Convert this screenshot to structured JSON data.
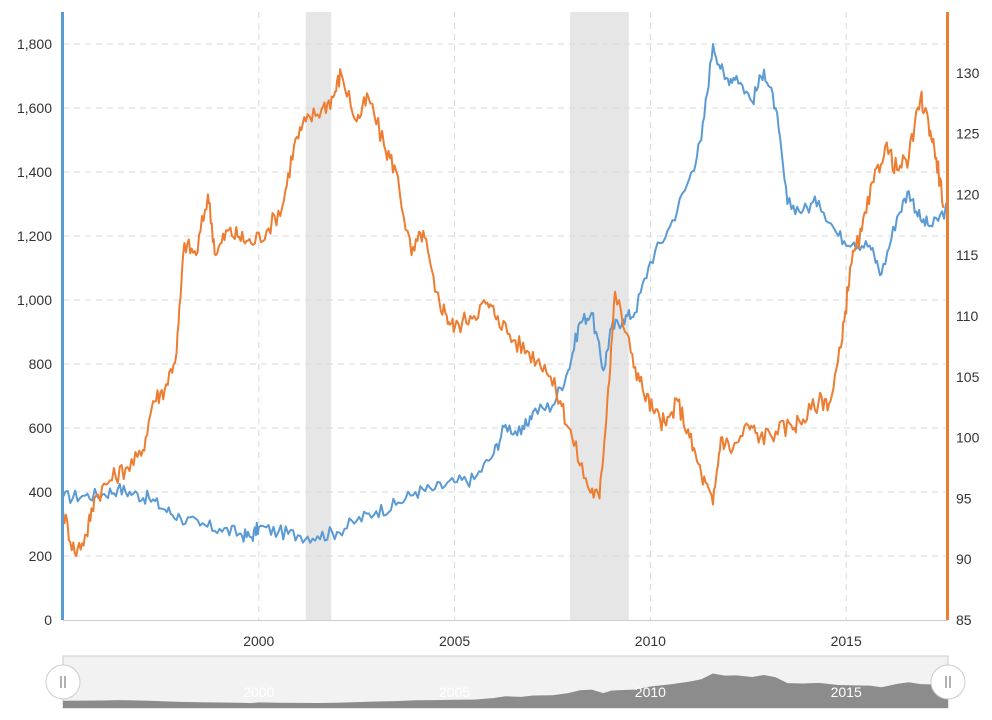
{
  "chart_data": {
    "type": "line",
    "title": "",
    "x_range": [
      1995.0,
      2017.6
    ],
    "x_ticks": [
      "2000",
      "2005",
      "2010",
      "2015"
    ],
    "y_left": {
      "range": [
        0,
        1900
      ],
      "ticks": [
        "0",
        "200",
        "400",
        "600",
        "800",
        "1,000",
        "1,200",
        "1,400",
        "1,600",
        "1,800"
      ],
      "color": "#5b9bd5"
    },
    "y_right": {
      "range": [
        85,
        135
      ],
      "ticks": [
        "85",
        "90",
        "95",
        "100",
        "105",
        "110",
        "115",
        "120",
        "125",
        "130"
      ],
      "color": "#ed7d31"
    },
    "grid": true,
    "recessions": [
      [
        2001.2,
        2001.85
      ],
      [
        2007.95,
        2009.45
      ]
    ],
    "series": [
      {
        "axis": "left",
        "color": "#5b9bd5",
        "points": [
          [
            1995.0,
            383
          ],
          [
            1995.5,
            388
          ],
          [
            1996.0,
            392
          ],
          [
            1996.4,
            410
          ],
          [
            1996.8,
            395
          ],
          [
            1997.2,
            380
          ],
          [
            1997.6,
            345
          ],
          [
            1998.0,
            320
          ],
          [
            1998.5,
            295
          ],
          [
            1999.0,
            285
          ],
          [
            1999.5,
            270
          ],
          [
            1999.8,
            258
          ],
          [
            2000.0,
            290
          ],
          [
            2000.5,
            275
          ],
          [
            2001.0,
            265
          ],
          [
            2001.5,
            262
          ],
          [
            2002.0,
            275
          ],
          [
            2002.5,
            310
          ],
          [
            2003.0,
            340
          ],
          [
            2003.5,
            360
          ],
          [
            2004.0,
            400
          ],
          [
            2004.5,
            410
          ],
          [
            2005.0,
            430
          ],
          [
            2005.5,
            440
          ],
          [
            2006.0,
            520
          ],
          [
            2006.3,
            610
          ],
          [
            2006.7,
            580
          ],
          [
            2007.0,
            650
          ],
          [
            2007.5,
            670
          ],
          [
            2007.9,
            780
          ],
          [
            2008.2,
            930
          ],
          [
            2008.5,
            960
          ],
          [
            2008.8,
            780
          ],
          [
            2009.0,
            910
          ],
          [
            2009.3,
            940
          ],
          [
            2009.6,
            960
          ],
          [
            2010.0,
            1120
          ],
          [
            2010.5,
            1230
          ],
          [
            2011.0,
            1380
          ],
          [
            2011.3,
            1500
          ],
          [
            2011.6,
            1800
          ],
          [
            2011.9,
            1690
          ],
          [
            2012.2,
            1700
          ],
          [
            2012.6,
            1620
          ],
          [
            2012.9,
            1720
          ],
          [
            2013.2,
            1600
          ],
          [
            2013.5,
            1300
          ],
          [
            2013.9,
            1280
          ],
          [
            2014.3,
            1310
          ],
          [
            2014.8,
            1200
          ],
          [
            2015.2,
            1180
          ],
          [
            2015.6,
            1170
          ],
          [
            2015.9,
            1080
          ],
          [
            2016.3,
            1260
          ],
          [
            2016.6,
            1340
          ],
          [
            2016.9,
            1250
          ],
          [
            2017.2,
            1230
          ],
          [
            2017.6,
            1290
          ]
        ]
      },
      {
        "axis": "right",
        "color": "#ed7d31",
        "points": [
          [
            1995.0,
            94
          ],
          [
            1995.3,
            90.5
          ],
          [
            1995.6,
            92
          ],
          [
            1995.8,
            95
          ],
          [
            1996.2,
            96.5
          ],
          [
            1996.6,
            97.5
          ],
          [
            1997.0,
            98.5
          ],
          [
            1997.3,
            103
          ],
          [
            1997.6,
            104
          ],
          [
            1997.9,
            107
          ],
          [
            1998.1,
            116
          ],
          [
            1998.4,
            115
          ],
          [
            1998.7,
            120
          ],
          [
            1998.9,
            115
          ],
          [
            1999.2,
            117
          ],
          [
            1999.5,
            116.5
          ],
          [
            1999.8,
            116
          ],
          [
            2000.2,
            117
          ],
          [
            2000.6,
            119
          ],
          [
            2000.9,
            124
          ],
          [
            2001.2,
            126
          ],
          [
            2001.6,
            127
          ],
          [
            2001.9,
            128
          ],
          [
            2002.1,
            130
          ],
          [
            2002.5,
            126
          ],
          [
            2002.8,
            128
          ],
          [
            2003.2,
            124
          ],
          [
            2003.5,
            122
          ],
          [
            2003.9,
            115
          ],
          [
            2004.2,
            117
          ],
          [
            2004.5,
            112
          ],
          [
            2004.8,
            110
          ],
          [
            2005.0,
            109
          ],
          [
            2005.4,
            110
          ],
          [
            2005.8,
            111
          ],
          [
            2006.1,
            110
          ],
          [
            2006.5,
            108
          ],
          [
            2006.9,
            107
          ],
          [
            2007.3,
            106
          ],
          [
            2007.7,
            103
          ],
          [
            2008.0,
            100
          ],
          [
            2008.4,
            96
          ],
          [
            2008.7,
            95
          ],
          [
            2008.9,
            103
          ],
          [
            2009.1,
            112
          ],
          [
            2009.5,
            107
          ],
          [
            2009.8,
            104
          ],
          [
            2010.1,
            102
          ],
          [
            2010.4,
            101
          ],
          [
            2010.7,
            103
          ],
          [
            2011.0,
            100
          ],
          [
            2011.3,
            97
          ],
          [
            2011.6,
            94.5
          ],
          [
            2011.8,
            100
          ],
          [
            2012.1,
            99
          ],
          [
            2012.5,
            101
          ],
          [
            2012.8,
            100
          ],
          [
            2013.2,
            100.5
          ],
          [
            2013.6,
            101
          ],
          [
            2013.9,
            101.5
          ],
          [
            2014.3,
            103
          ],
          [
            2014.6,
            103
          ],
          [
            2014.9,
            108
          ],
          [
            2015.1,
            114
          ],
          [
            2015.4,
            117
          ],
          [
            2015.7,
            121
          ],
          [
            2016.0,
            124
          ],
          [
            2016.3,
            122
          ],
          [
            2016.6,
            123
          ],
          [
            2016.9,
            128
          ],
          [
            2017.1,
            126
          ],
          [
            2017.3,
            123
          ],
          [
            2017.5,
            119
          ]
        ]
      }
    ],
    "navigator": {
      "x_ticks": [
        "2000",
        "2005",
        "2010",
        "2015"
      ]
    }
  }
}
